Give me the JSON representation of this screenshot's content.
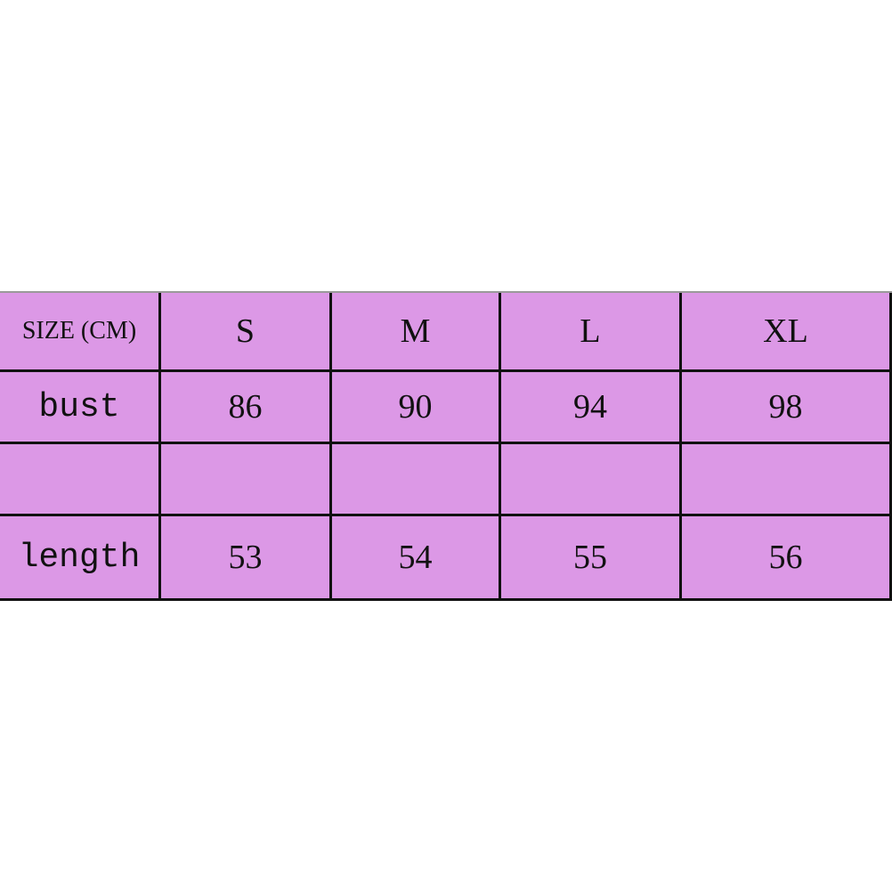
{
  "table": {
    "header": [
      "SIZE (CM)",
      "S",
      "M",
      "L",
      "XL"
    ],
    "rows": [
      [
        "bust",
        "86",
        "90",
        "94",
        "98"
      ],
      [
        "",
        "",
        "",
        "",
        ""
      ],
      [
        "length",
        "53",
        "54",
        "55",
        "56"
      ]
    ]
  },
  "colors": {
    "cell_background": "#dc98e6",
    "border": "#111111"
  }
}
